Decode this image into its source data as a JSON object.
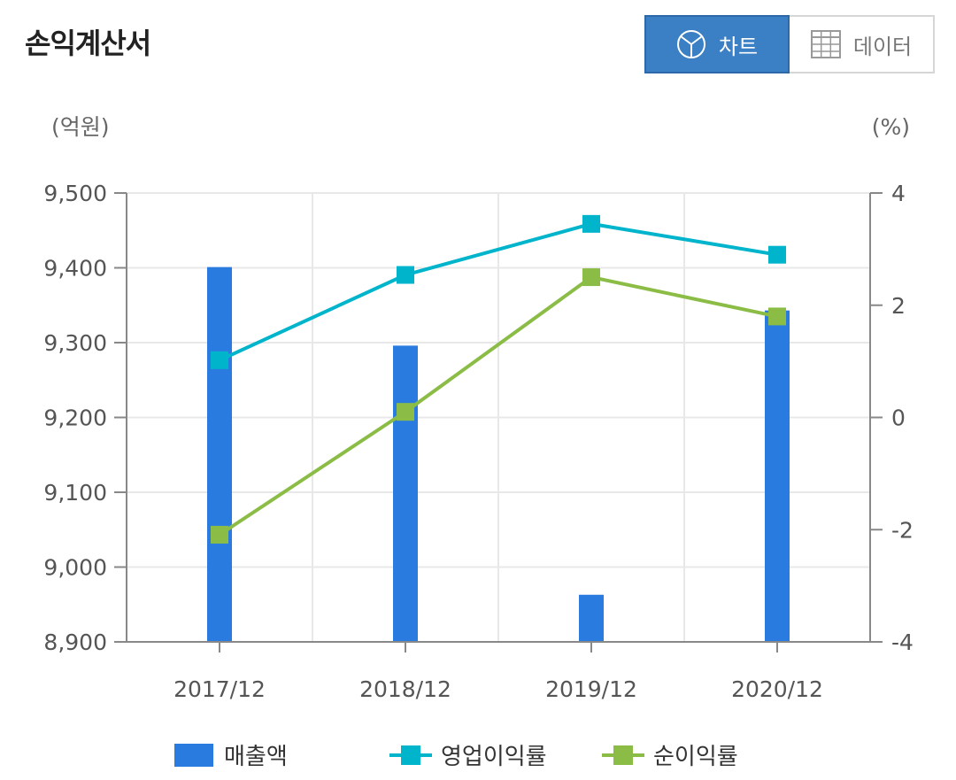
{
  "header": {
    "title": "손익계산서",
    "chart_button_label": "차트",
    "data_button_label": "데이터",
    "chart_button_icon": "pie-chart-icon",
    "data_button_icon": "table-grid-icon"
  },
  "colors": {
    "bar": "#2a7be0",
    "operating_margin": "#00b4cc",
    "net_margin": "#8bbd46",
    "active_button": "#3b7fc4"
  },
  "chart_data": {
    "type": "bar+line",
    "categories": [
      "2017/12",
      "2018/12",
      "2019/12",
      "2020/12"
    ],
    "left_axis": {
      "label": "(억원)",
      "ylim": [
        8900,
        9500
      ],
      "ticks": [
        "8,900",
        "9,000",
        "9,100",
        "9,200",
        "9,300",
        "9,400",
        "9,500"
      ]
    },
    "right_axis": {
      "label": "(%)",
      "ylim": [
        -4,
        4
      ],
      "ticks": [
        "-4",
        "-2",
        "0",
        "2",
        "4"
      ]
    },
    "series": [
      {
        "name": "매출액",
        "type": "bar",
        "axis": "left",
        "values": [
          9401,
          9296,
          8963,
          9343
        ]
      },
      {
        "name": "영업이익률",
        "type": "line",
        "axis": "right",
        "values": [
          1.02,
          2.54,
          3.45,
          2.9
        ]
      },
      {
        "name": "순이익률",
        "type": "line",
        "axis": "right",
        "values": [
          -2.09,
          0.1,
          2.5,
          1.8
        ]
      }
    ],
    "grid": true,
    "legend": "bottom"
  }
}
